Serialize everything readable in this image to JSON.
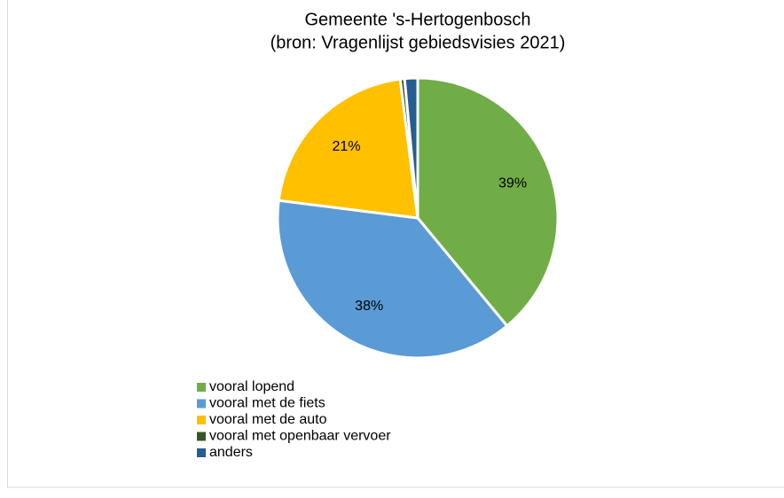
{
  "chart_data": {
    "type": "pie",
    "title": "Gemeente 's-Hertogenbosch",
    "subtitle": "(bron: Vragenlijst gebiedsvisies 2021)",
    "categories": [
      "vooral lopend",
      "vooral met de fiets",
      "vooral met de auto",
      "vooral met openbaar vervoer",
      "anders"
    ],
    "values": [
      39,
      38,
      21,
      0.5,
      1.5
    ],
    "value_labels": [
      "39%",
      "38%",
      "21%",
      null,
      null
    ],
    "colors": [
      "#70ad47",
      "#5b9bd5",
      "#ffc000",
      "#375623",
      "#255e91"
    ],
    "legend": "bottom-left"
  }
}
